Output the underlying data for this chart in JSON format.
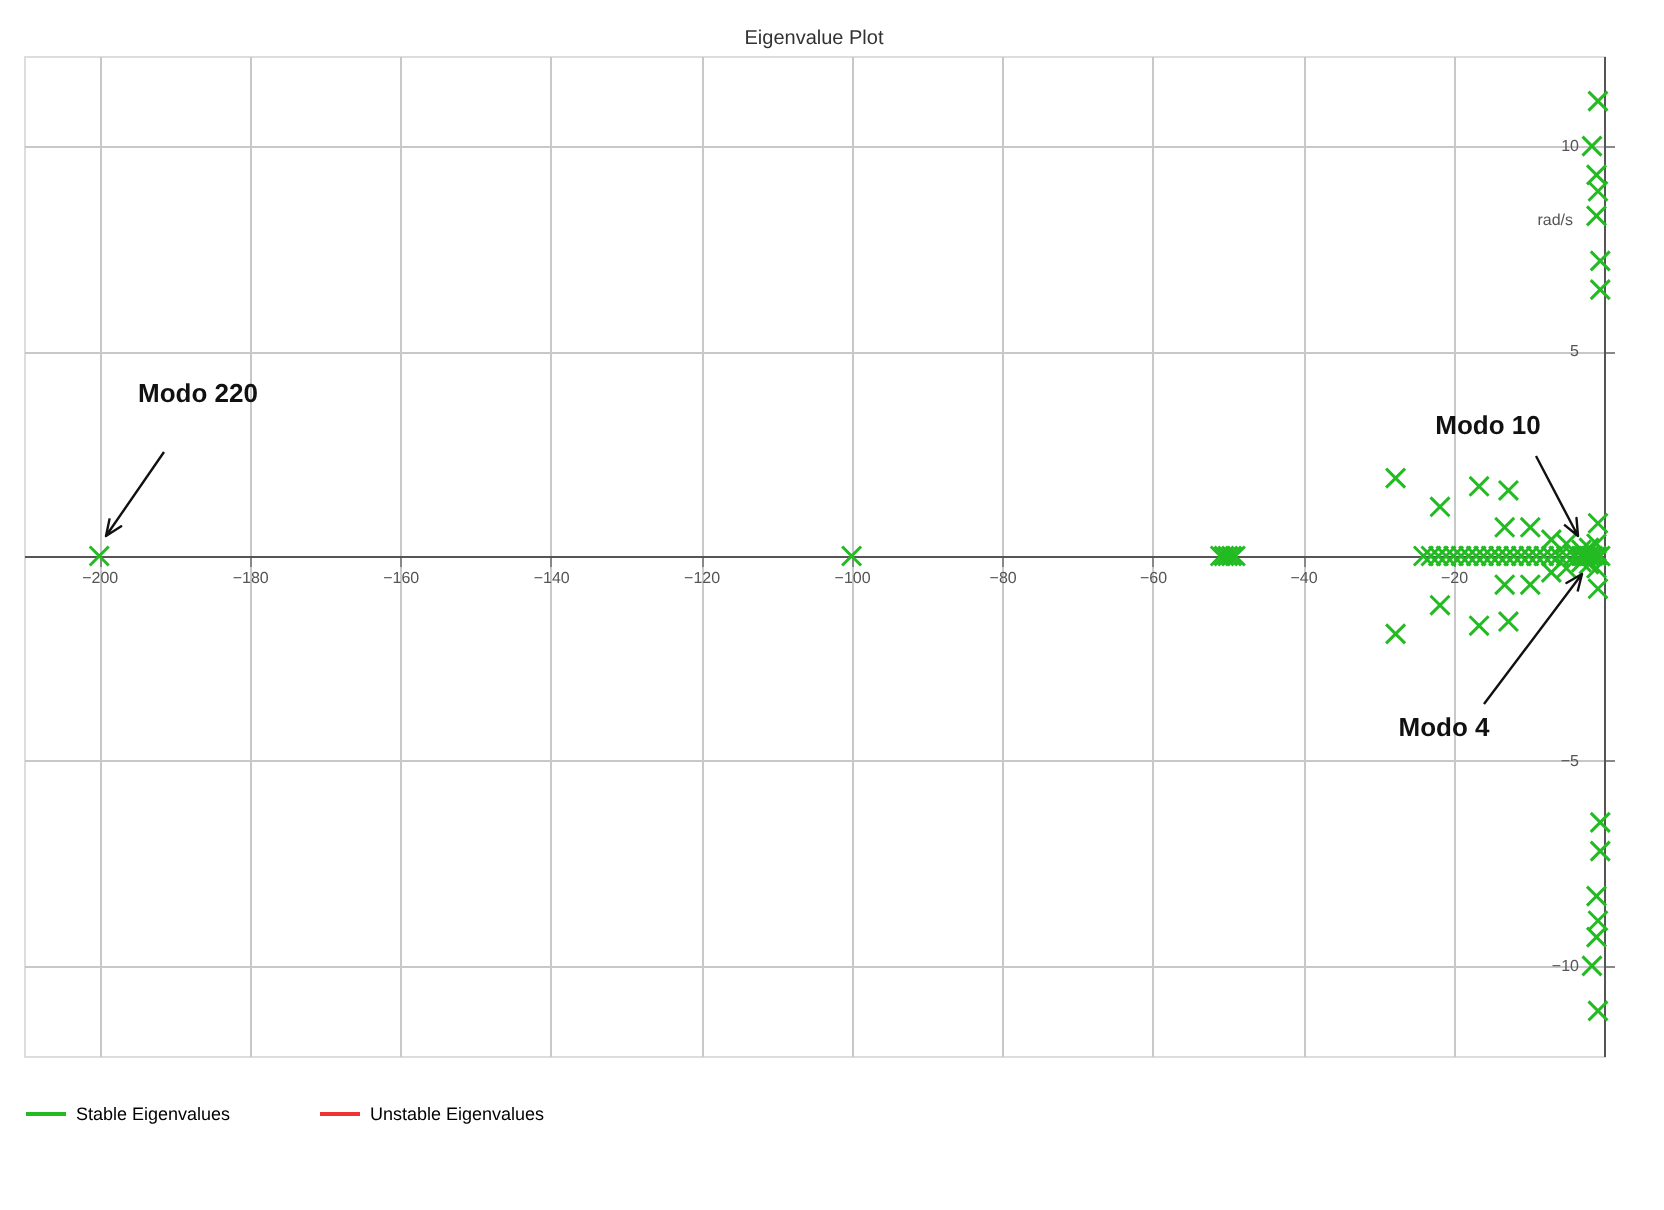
{
  "chart_data": {
    "type": "scatter",
    "title": "Eigenvalue Plot",
    "ylabel": "rad/s",
    "series": [
      {
        "name": "Stable Eigenvalues",
        "color": "#22bb22",
        "x": [
          -200,
          -100,
          -51,
          -50.5,
          -50,
          -49.5,
          -49,
          -24,
          -23,
          -22,
          -21,
          -20,
          -19,
          -18,
          -17,
          -16,
          -15,
          -14,
          -13,
          -12,
          -11,
          -10,
          -9,
          -8,
          -7,
          -6,
          -5,
          -4,
          -3,
          -2.5,
          -2,
          -1.5,
          -1,
          -0.5,
          -2,
          -2,
          -1,
          -1,
          -3,
          -3,
          -7,
          -7,
          -5,
          -5,
          -27.7,
          -27.7,
          -21.8,
          -21.8,
          -16.6,
          -16.6,
          -12.7,
          -12.7,
          -13.2,
          -13.2,
          -9.8,
          -9.8,
          -0.8,
          -0.8,
          -0.8,
          -0.8,
          -1.6,
          -1.6,
          -1.0,
          -1.0,
          -0.8,
          -0.8,
          -1.0,
          -1.0,
          -0.5,
          -0.5,
          -0.5,
          -0.5
        ],
        "values": [
          0,
          0,
          0,
          0,
          0,
          0,
          0,
          0,
          0,
          0,
          0,
          0,
          0,
          0,
          0,
          0,
          0,
          0,
          0,
          0,
          0,
          0,
          0,
          0,
          0,
          0,
          0,
          0,
          0,
          0,
          0,
          0,
          0,
          0,
          0.2,
          -0.2,
          0.3,
          -0.3,
          0.15,
          -0.15,
          0.4,
          -0.4,
          0.3,
          -0.3,
          1.9,
          -1.9,
          1.2,
          -1.2,
          1.7,
          -1.7,
          1.6,
          -1.6,
          0.7,
          -0.7,
          0.7,
          -0.7,
          0.8,
          -0.8,
          11.1,
          -11.1,
          10.0,
          -10.0,
          9.3,
          -9.3,
          8.9,
          -8.9,
          8.3,
          -8.3,
          7.2,
          -7.2,
          6.5,
          -6.5
        ]
      },
      {
        "name": "Unstable Eigenvalues",
        "color": "#ee3333"
      }
    ],
    "xlim": [
      -210,
      0
    ],
    "ylim": [
      -12.2,
      12.2
    ],
    "xticks": [
      -200,
      -180,
      -160,
      -140,
      -120,
      -100,
      -80,
      -60,
      -40,
      -20
    ],
    "yticks": [
      -10,
      -5,
      5,
      10
    ],
    "grid": true,
    "legend": "bottom",
    "marker": "cross",
    "annotations": [
      "Modo 220",
      "Modo 10",
      "Modo 4"
    ]
  }
}
